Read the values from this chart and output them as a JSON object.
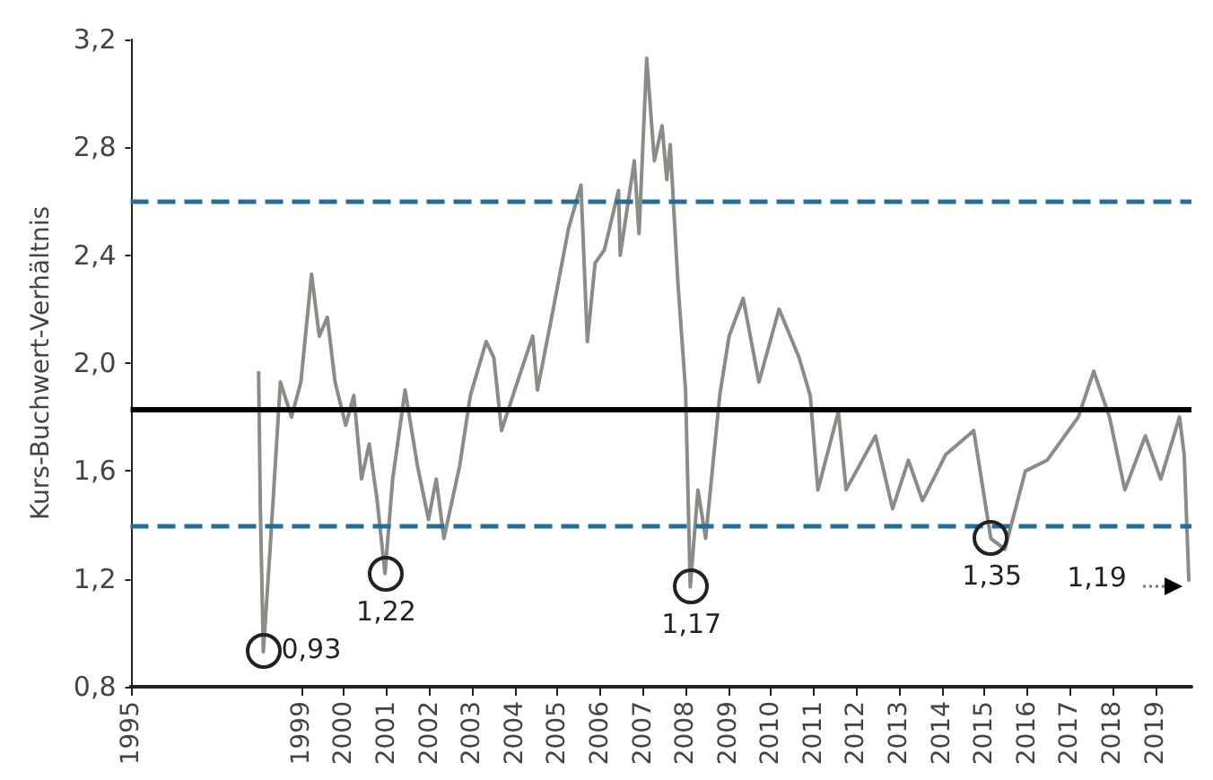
{
  "chart_data": {
    "type": "line",
    "ylabel": "Kurs-Buchwert-Verhältnis",
    "x": [
      1998.0,
      1998.04,
      1998.11,
      1998.26,
      1998.51,
      1998.77,
      1998.99,
      1999.24,
      1999.42,
      1999.61,
      1999.79,
      2000.04,
      2000.23,
      2000.41,
      2000.59,
      2000.77,
      2000.96,
      2001.14,
      2001.43,
      2001.72,
      2001.98,
      2002.16,
      2002.34,
      2002.71,
      2002.96,
      2003.33,
      2003.51,
      2003.69,
      2004.06,
      2004.42,
      2004.53,
      2004.9,
      2005.26,
      2005.55,
      2005.7,
      2005.88,
      2006.1,
      2006.43,
      2006.47,
      2006.8,
      2006.91,
      2007.09,
      2007.27,
      2007.45,
      2007.56,
      2007.64,
      2007.82,
      2008.0,
      2008.11,
      2008.29,
      2008.47,
      2008.8,
      2009.02,
      2009.35,
      2009.72,
      2010.19,
      2010.66,
      2010.92,
      2011.1,
      2011.58,
      2011.76,
      2012.45,
      2012.85,
      2013.22,
      2013.55,
      2014.09,
      2014.75,
      2015.15,
      2015.48,
      2015.96,
      2016.47,
      2017.2,
      2017.56,
      2017.93,
      2018.29,
      2018.77,
      2019.13,
      2019.57,
      2019.68,
      2019.79
    ],
    "series": [
      {
        "color": "#8a8c86",
        "values": [
          1.97,
          1.46,
          0.93,
          1.29,
          1.93,
          1.8,
          1.93,
          2.33,
          2.1,
          2.17,
          1.93,
          1.77,
          1.88,
          1.57,
          1.7,
          1.5,
          1.22,
          1.57,
          1.9,
          1.62,
          1.42,
          1.57,
          1.35,
          1.62,
          1.88,
          2.08,
          2.02,
          1.75,
          1.93,
          2.1,
          1.9,
          2.2,
          2.5,
          2.66,
          2.08,
          2.37,
          2.42,
          2.64,
          2.4,
          2.75,
          2.48,
          3.13,
          2.75,
          2.88,
          2.68,
          2.81,
          2.3,
          1.9,
          1.17,
          1.53,
          1.35,
          1.88,
          2.1,
          2.24,
          1.93,
          2.2,
          2.02,
          1.88,
          1.53,
          1.82,
          1.53,
          1.73,
          1.46,
          1.64,
          1.49,
          1.66,
          1.75,
          1.35,
          1.31,
          1.6,
          1.64,
          1.8,
          1.97,
          1.8,
          1.53,
          1.73,
          1.57,
          1.8,
          1.66,
          1.19
        ]
      }
    ],
    "xlim": [
      1995,
      2019.85
    ],
    "xticks": [
      1995,
      1999,
      2000,
      2001,
      2002,
      2003,
      2004,
      2005,
      2006,
      2007,
      2008,
      2009,
      2010,
      2011,
      2012,
      2013,
      2014,
      2015,
      2016,
      2017,
      2018,
      2019
    ],
    "ylim": [
      0.8,
      3.2
    ],
    "yticks": [
      {
        "value": 0.8,
        "label": "0,8"
      },
      {
        "value": 1.2,
        "label": "1,2"
      },
      {
        "value": 1.6,
        "label": "1,6"
      },
      {
        "value": 2.0,
        "label": "2,0"
      },
      {
        "value": 2.4,
        "label": "2,4"
      },
      {
        "value": 2.8,
        "label": "2,8"
      },
      {
        "value": 3.2,
        "label": "3,2"
      }
    ],
    "ref_lines": [
      {
        "axis": "y",
        "value": 1.83,
        "color": "#000000",
        "line_style": "solid"
      },
      {
        "axis": "y",
        "value": 2.6,
        "color": "#1f6e9c",
        "line_style": "dashed"
      },
      {
        "axis": "y",
        "value": 1.4,
        "color": "#1f6e9c",
        "line_style": "dashed"
      }
    ],
    "annotations": [
      {
        "text": "0,93",
        "x": 1998.11,
        "y": 0.93
      },
      {
        "text": "1,22",
        "x": 2000.96,
        "y": 1.22
      },
      {
        "text": "1,17",
        "x": 2008.11,
        "y": 1.17
      },
      {
        "text": "1,35",
        "x": 2015.15,
        "y": 1.35
      },
      {
        "text": "1,19",
        "x": 2019.79,
        "y": 1.19
      }
    ],
    "grid": false,
    "marker": "none",
    "line_style": "solid"
  }
}
